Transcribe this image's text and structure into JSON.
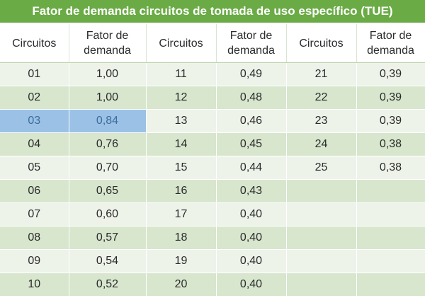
{
  "title": "Fator de demanda circuitos de tomada de uso específico (TUE)",
  "headers": [
    [
      "Circuitos"
    ],
    [
      "Fator de",
      "demanda"
    ],
    [
      "Circuitos"
    ],
    [
      "Fator de",
      "demanda"
    ],
    [
      "Circuitos"
    ],
    [
      "Fator de",
      "demanda"
    ]
  ],
  "rows": [
    [
      "01",
      "1,00",
      "11",
      "0,49",
      "21",
      "0,39"
    ],
    [
      "02",
      "1,00",
      "12",
      "0,48",
      "22",
      "0,39"
    ],
    [
      "03",
      "0,84",
      "13",
      "0,46",
      "23",
      "0,39"
    ],
    [
      "04",
      "0,76",
      "14",
      "0,45",
      "24",
      "0,38"
    ],
    [
      "05",
      "0,70",
      "15",
      "0,44",
      "25",
      "0,38"
    ],
    [
      "06",
      "0,65",
      "16",
      "0,43",
      "",
      ""
    ],
    [
      "07",
      "0,60",
      "17",
      "0,40",
      "",
      ""
    ],
    [
      "08",
      "0,57",
      "18",
      "0,40",
      "",
      ""
    ],
    [
      "09",
      "0,54",
      "19",
      "0,40",
      "",
      ""
    ],
    [
      "10",
      "0,52",
      "20",
      "0,40",
      "",
      ""
    ]
  ],
  "highlight": {
    "row": 2,
    "cols": [
      0,
      1
    ],
    "color": "#9bc2e6"
  },
  "colors": {
    "title_bg": "#6aab45",
    "row_light": "#eef3ea",
    "row_dark": "#d7e6cd"
  }
}
